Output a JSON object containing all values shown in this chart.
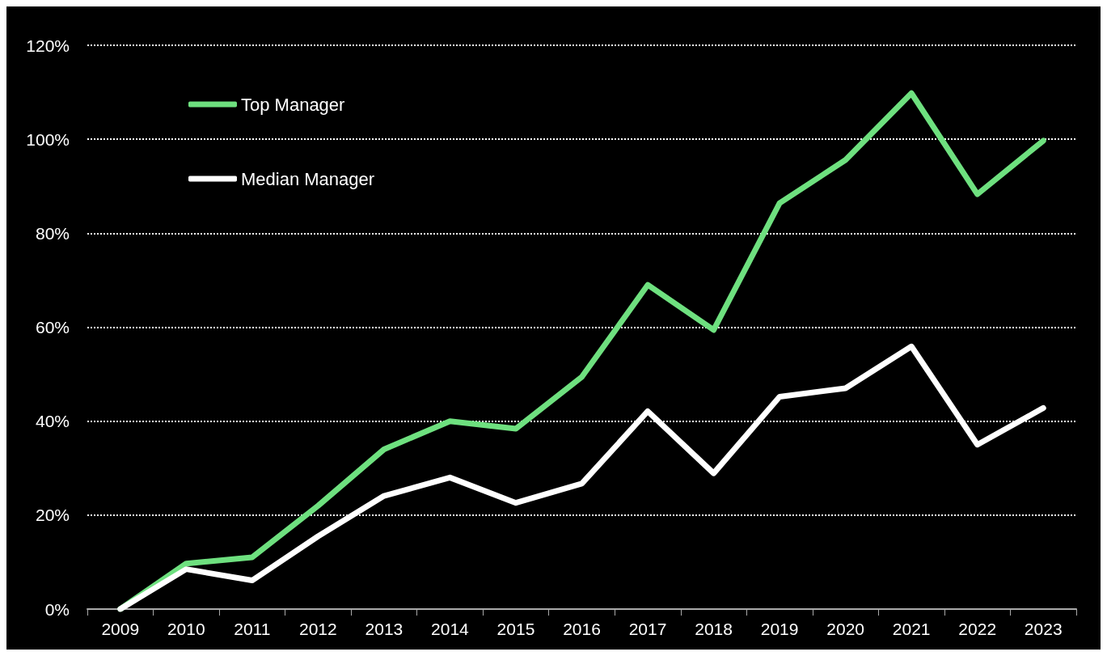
{
  "chart_data": {
    "type": "line",
    "categories": [
      "2009",
      "2010",
      "2011",
      "2012",
      "2013",
      "2014",
      "2015",
      "2016",
      "2017",
      "2018",
      "2019",
      "2020",
      "2021",
      "2022",
      "2023"
    ],
    "series": [
      {
        "name": "Top Manager",
        "color": "#6ee07f",
        "values": [
          0,
          9.7,
          11,
          22,
          34,
          40,
          38.4,
          49.4,
          69,
          59.4,
          86.4,
          95.6,
          109.8,
          88.3,
          99.7
        ]
      },
      {
        "name": "Median Manager",
        "color": "#ffffff",
        "values": [
          0,
          8.5,
          6.1,
          15.5,
          24.1,
          28,
          22.6,
          26.7,
          42.1,
          28.9,
          45.2,
          47,
          55.9,
          35,
          42.8
        ]
      }
    ],
    "ylim": [
      0,
      120
    ],
    "yticks": [
      {
        "value": 0,
        "label": "0%"
      },
      {
        "value": 20,
        "label": "20%"
      },
      {
        "value": 40,
        "label": "40%"
      },
      {
        "value": 60,
        "label": "60%"
      },
      {
        "value": 80,
        "label": "80%"
      },
      {
        "value": 100,
        "label": "100%"
      },
      {
        "value": 120,
        "label": "120%"
      }
    ],
    "grid": "y",
    "legend": "top left",
    "marker": "none",
    "line_style": "solid"
  }
}
